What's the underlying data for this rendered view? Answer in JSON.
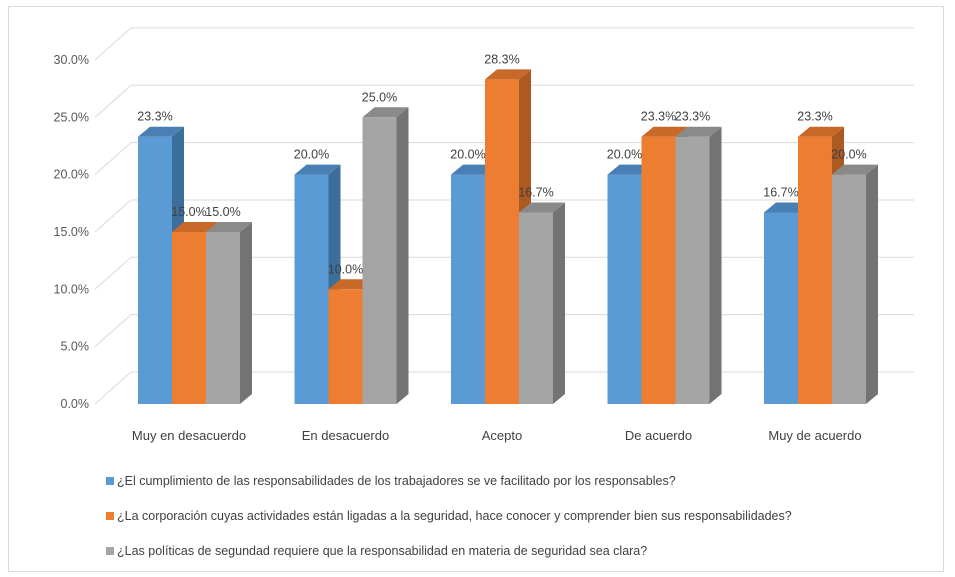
{
  "chart_data": {
    "type": "bar",
    "categories": [
      "Muy en desacuerdo",
      "En desacuerdo",
      "Acepto",
      "De acuerdo",
      "Muy de acuerdo"
    ],
    "series": [
      {
        "name": "¿El cumplimiento de las responsabilidades de los trabajadores se ve facilitado por los responsables?",
        "values": [
          23.3,
          20.0,
          20.0,
          20.0,
          16.7
        ],
        "color": "#5b9bd5",
        "side": "#3c6e9c",
        "top": "#4a7fb3"
      },
      {
        "name": "¿La corporación cuyas actividades están ligadas a la seguridad, hace conocer y comprender bien sus responsabilidades?",
        "values": [
          15.0,
          10.0,
          28.3,
          23.3,
          23.3
        ],
        "color": "#ed7d31",
        "side": "#ad5a22",
        "top": "#c8692a"
      },
      {
        "name": "¿Las políticas de segundad requiere que la responsabilidad en materia de seguridad sea clara?",
        "values": [
          15.0,
          25.0,
          16.7,
          23.3,
          20.0
        ],
        "color": "#a5a5a5",
        "side": "#737373",
        "top": "#8a8a8a"
      }
    ],
    "data_labels": [
      [
        "23.3%",
        "20.0%",
        "20.0%",
        "20.0%",
        "16.7%"
      ],
      [
        "15.0%",
        "10.0%",
        "28.3%",
        "23.3%",
        "23.3%"
      ],
      [
        "15.0%",
        "25.0%",
        "16.7%",
        "23.3%",
        "20.0%"
      ]
    ],
    "y_ticks": [
      "0.0%",
      "5.0%",
      "10.0%",
      "15.0%",
      "20.0%",
      "25.0%",
      "30.0%"
    ],
    "ylim": [
      0,
      30
    ],
    "grid": true,
    "legend_position": "bottom",
    "style": "3d-clustered-column"
  }
}
